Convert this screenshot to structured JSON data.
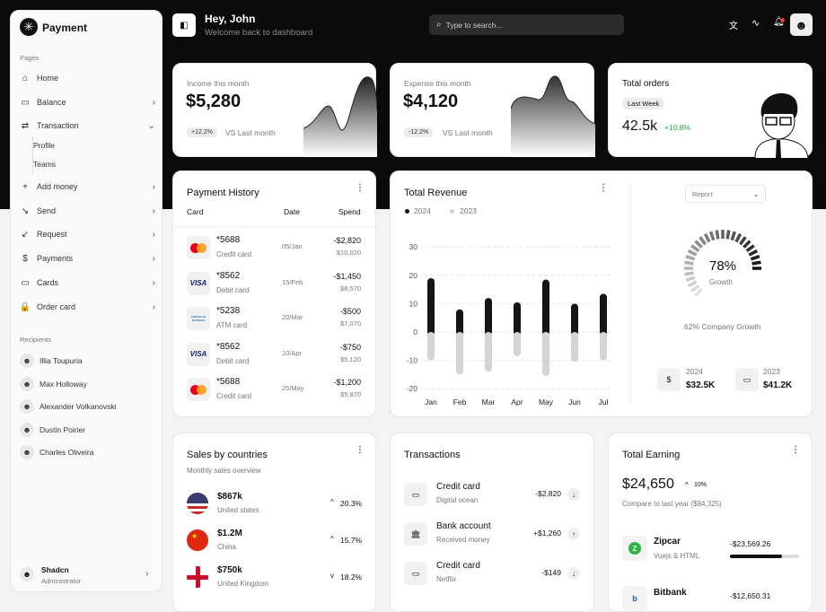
{
  "sidebar": {
    "brand": "Payment",
    "pages_label": "Pages",
    "items": [
      {
        "label": "Home",
        "icon": "home-icon",
        "glyph": "⌂"
      },
      {
        "label": "Balance",
        "icon": "wallet-icon",
        "glyph": "▭"
      },
      {
        "label": "Transaction",
        "icon": "transfer-icon",
        "glyph": "⇄"
      },
      {
        "label": "Add money",
        "icon": "plus-icon",
        "glyph": "+"
      },
      {
        "label": "Send",
        "icon": "arrow-down-right-icon",
        "glyph": "↘"
      },
      {
        "label": "Request",
        "icon": "arrow-down-left-icon",
        "glyph": "↙"
      },
      {
        "label": "Payments",
        "icon": "dollar-icon",
        "glyph": "$"
      },
      {
        "label": "Cards",
        "icon": "card-icon",
        "glyph": "▭"
      },
      {
        "label": "Order card",
        "icon": "lock-icon",
        "glyph": "🔒"
      }
    ],
    "subitems": [
      "Profile",
      "Teams"
    ],
    "recipients_label": "Recipients",
    "recipients": [
      "Illia Toupuria",
      "Max Holloway",
      "Alexander Volkanovski",
      "Dustin Poirier",
      "Charles Oliveira"
    ],
    "user": {
      "name": "Shadcn",
      "role": "Administrator"
    }
  },
  "header": {
    "greeting": "Hey, John",
    "subtitle": "Welcome back to dashboard",
    "search_placeholder": "Type to search..."
  },
  "income": {
    "label": "Income this month",
    "value": "$5,280",
    "change": "+12.2%",
    "compare": "VS Last month"
  },
  "expense": {
    "label": "Expense this month",
    "value": "$4,120",
    "change": "-12.2%",
    "compare": "VS Last month"
  },
  "orders": {
    "title": "Total orders",
    "period": "Last Week",
    "value": "42.5k",
    "change": "+10.8%",
    "accent": "#22a447"
  },
  "payment_history": {
    "title": "Payment History",
    "columns": [
      "Card",
      "Date",
      "Spend"
    ],
    "rows": [
      {
        "brand": "mastercard",
        "card": "*5688",
        "type": "Credit card",
        "date": "05/Jan",
        "spend": "-$2,820",
        "balance": "$10,020"
      },
      {
        "brand": "visa",
        "card": "*8562",
        "type": "Debit card",
        "date": "15/Feb",
        "spend": "-$1,450",
        "balance": "$8,570"
      },
      {
        "brand": "amex",
        "card": "*5238",
        "type": "ATM card",
        "date": "20/Mar",
        "spend": "-$500",
        "balance": "$7,070"
      },
      {
        "brand": "visa",
        "card": "*8562",
        "type": "Debit card",
        "date": "10/Apr",
        "spend": "-$750",
        "balance": "$5,120"
      },
      {
        "brand": "mastercard",
        "card": "*5688",
        "type": "Credit card",
        "date": "25/May",
        "spend": "-$1,200",
        "balance": "$5,870"
      }
    ],
    "visa_label": "VISA",
    "amex_label": "AMERICAN EXPRESS"
  },
  "revenue": {
    "title": "Total Revenue",
    "report_select": "Report",
    "gauge_value": "78%",
    "gauge_label": "Growth",
    "gauge_fraction": 0.78,
    "company_growth": "62% Company Growth",
    "stats": [
      {
        "year": "2024",
        "value": "$32.5K",
        "icon": "dollar-circle-icon"
      },
      {
        "year": "2023",
        "value": "$41.2K",
        "icon": "wallet-icon"
      }
    ]
  },
  "chart_data": {
    "type": "bar",
    "categories": [
      "Jan",
      "Feb",
      "Mar",
      "Apr",
      "May",
      "Jun",
      "Jul"
    ],
    "series": [
      {
        "name": "2024",
        "values": [
          19,
          8,
          12,
          10.5,
          18.5,
          10,
          13.5
        ],
        "color": "#151515"
      },
      {
        "name": "2023",
        "values": [
          -10,
          -15,
          -14,
          -8.5,
          -15.5,
          -10.5,
          -10
        ],
        "color": "#d4d4d4"
      }
    ],
    "yticks": [
      30,
      20,
      10,
      0,
      -10,
      -20
    ],
    "ylim": [
      -20,
      30
    ],
    "grid": true,
    "legend": "top-left"
  },
  "sales": {
    "title": "Sales by countries",
    "subtitle": "Monthly sales overview",
    "rows": [
      {
        "value": "$867k",
        "country": "United states",
        "change": "20.3%",
        "dir": "up"
      },
      {
        "value": "$1.2M",
        "country": "China",
        "change": "15.7%",
        "dir": "up"
      },
      {
        "value": "$750k",
        "country": "United Kingdom",
        "change": "18.2%",
        "dir": "down"
      }
    ]
  },
  "transactions": {
    "title": "Transactions",
    "rows": [
      {
        "name": "Credit card",
        "sub": "Digital ocean",
        "amount": "-$2,820",
        "dir": "down",
        "icon": "card-icon"
      },
      {
        "name": "Bank account",
        "sub": "Received money",
        "amount": "+$1,260",
        "dir": "up",
        "icon": "bank-icon"
      },
      {
        "name": "Credit card",
        "sub": "Netflix",
        "amount": "-$149",
        "dir": "down",
        "icon": "card-icon"
      }
    ]
  },
  "earning": {
    "title": "Total Earning",
    "value": "$24,650",
    "change": "10%",
    "compare": "Compare to last year ($84,325)",
    "rows": [
      {
        "name": "Zipcar",
        "sub": "Vuejs & HTML",
        "amount": "-$23,569.26",
        "progress": 0.75
      },
      {
        "name": "Bitbank",
        "sub": "",
        "amount": "-$12,650.31"
      }
    ]
  }
}
